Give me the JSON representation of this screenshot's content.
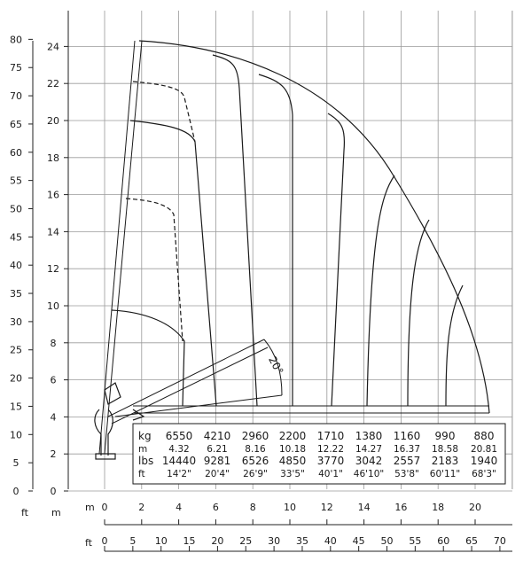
{
  "axes": {
    "left_ft": {
      "unit": "ft",
      "ticks": [
        0,
        5,
        10,
        15,
        20,
        25,
        30,
        35,
        40,
        45,
        50,
        55,
        60,
        65,
        70,
        75,
        80
      ]
    },
    "left_m": {
      "unit": "m",
      "ticks": [
        0,
        2,
        4,
        6,
        8,
        10,
        12,
        14,
        16,
        18,
        20,
        22,
        24
      ]
    },
    "bottom_m": {
      "unit": "m",
      "ticks": [
        0,
        2,
        4,
        6,
        8,
        10,
        12,
        14,
        16,
        18,
        20
      ]
    },
    "bottom_ft": {
      "unit": "ft",
      "ticks": [
        0,
        5,
        10,
        15,
        20,
        25,
        30,
        35,
        40,
        45,
        50,
        55,
        60,
        65,
        70
      ]
    }
  },
  "angle_label": "20°",
  "load_table": {
    "rows": [
      {
        "unit": "kg",
        "values": [
          "6550",
          "4210",
          "2960",
          "2200",
          "1710",
          "1380",
          "1160",
          "990",
          "880"
        ]
      },
      {
        "unit": "m",
        "values": [
          "4.32",
          "6.21",
          "8.16",
          "10.18",
          "12.22",
          "14.27",
          "16.37",
          "18.58",
          "20.81"
        ]
      },
      {
        "unit": "lbs",
        "values": [
          "14440",
          "9281",
          "6526",
          "4850",
          "3770",
          "3042",
          "2557",
          "2183",
          "1940"
        ]
      },
      {
        "unit": "ft",
        "values": [
          "14'2\"",
          "20'4\"",
          "26'9\"",
          "33'5\"",
          "40'1\"",
          "46'10\"",
          "53'8\"",
          "60'11\"",
          "68'3\""
        ]
      }
    ]
  }
}
